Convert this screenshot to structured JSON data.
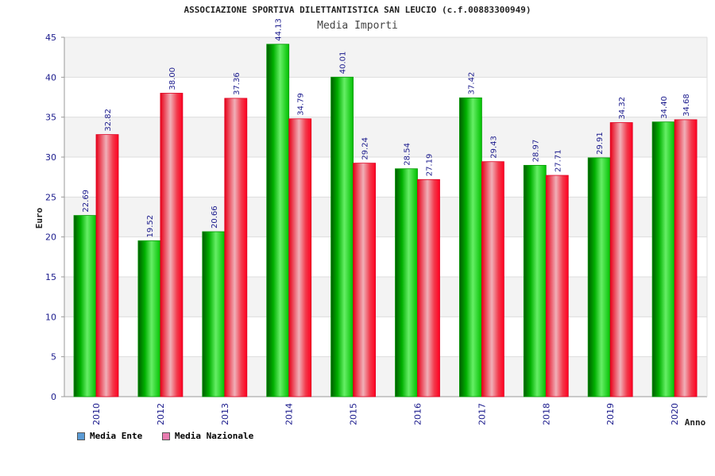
{
  "header": {
    "title": "ASSOCIAZIONE SPORTIVA DILETTANTISTICA SAN LEUCIO (c.f.00883300949)",
    "subtitle": "Media Importi"
  },
  "legend": {
    "items": [
      {
        "label": "Media Ente",
        "color": "#5b9bd5"
      },
      {
        "label": "Media Nazionale",
        "color": "#e87cb0"
      }
    ]
  },
  "chart_data": {
    "type": "bar",
    "title": "ASSOCIAZIONE SPORTIVA DILETTANTISTICA SAN LEUCIO (c.f.00883300949)",
    "subtitle": "Media Importi",
    "xlabel": "Anno",
    "ylabel": "Euro",
    "ylim": [
      0,
      45
    ],
    "yticks": [
      0,
      5,
      10,
      15,
      20,
      25,
      30,
      35,
      40,
      45
    ],
    "grid": true,
    "legend_position": "bottom-left",
    "categories": [
      "2010",
      "2012",
      "2013",
      "2014",
      "2015",
      "2016",
      "2017",
      "2018",
      "2019",
      "2020"
    ],
    "series": [
      {
        "name": "Media Ente",
        "color": "#00a000",
        "values": [
          22.69,
          19.52,
          20.66,
          44.13,
          40.01,
          28.54,
          37.42,
          28.97,
          29.91,
          34.4
        ],
        "labels": [
          "22.69",
          "19.52",
          "20.66",
          "44.13",
          "40.01",
          "28.54",
          "37.42",
          "28.97",
          "29.91",
          "34.40"
        ]
      },
      {
        "name": "Media Nazionale",
        "color": "#e8001c",
        "values": [
          32.82,
          38.0,
          37.36,
          34.79,
          29.24,
          27.19,
          29.43,
          27.71,
          34.32,
          34.68
        ],
        "labels": [
          "32.82",
          "38.00",
          "37.36",
          "34.79",
          "29.24",
          "27.19",
          "29.43",
          "27.71",
          "34.32",
          "34.68"
        ]
      }
    ]
  }
}
